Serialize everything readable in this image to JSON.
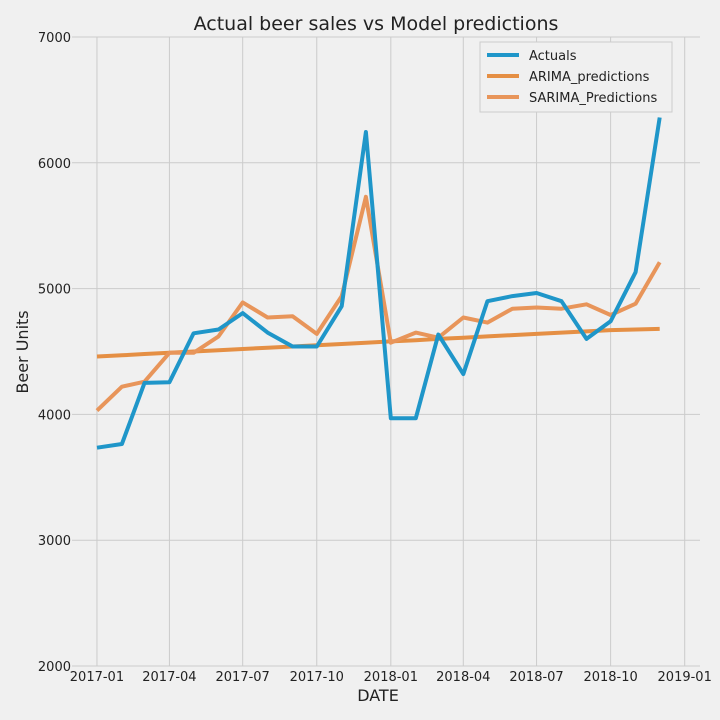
{
  "chart_data": {
    "type": "line",
    "title": "Actual beer sales vs Model predictions",
    "xlabel": "DATE",
    "ylabel": "Beer Units",
    "xlim": [
      "2016-12-01",
      "2019-01-20"
    ],
    "ylim": [
      2000,
      7000
    ],
    "grid": true,
    "legend_position": "top-right",
    "x_ticks": [
      "2017-01",
      "2017-04",
      "2017-07",
      "2017-10",
      "2018-01",
      "2018-04",
      "2018-07",
      "2018-10",
      "2019-01"
    ],
    "y_ticks": [
      2000,
      3000,
      4000,
      5000,
      6000,
      7000
    ],
    "x": [
      "2017-01",
      "2017-02",
      "2017-03",
      "2017-04",
      "2017-05",
      "2017-06",
      "2017-07",
      "2017-08",
      "2017-09",
      "2017-10",
      "2017-11",
      "2017-12",
      "2018-01",
      "2018-02",
      "2018-03",
      "2018-04",
      "2018-05",
      "2018-06",
      "2018-07",
      "2018-08",
      "2018-09",
      "2018-10",
      "2018-11",
      "2018-12"
    ],
    "series": [
      {
        "name": "Actuals",
        "color": "#1f96c9",
        "values": [
          3735,
          3765,
          4250,
          4255,
          4645,
          4675,
          4805,
          4650,
          4540,
          4540,
          4860,
          6245,
          3970,
          3970,
          4635,
          4320,
          4900,
          4940,
          4965,
          4900,
          4600,
          4740,
          5130,
          6360
        ]
      },
      {
        "name": "ARIMA_predictions",
        "color": "#e58f44",
        "values": [
          4460,
          4470,
          4480,
          4490,
          4500,
          4510,
          4520,
          4530,
          4540,
          4550,
          4560,
          4570,
          4580,
          4590,
          4600,
          4610,
          4620,
          4630,
          4640,
          4650,
          4660,
          4670,
          4675,
          4680
        ]
      },
      {
        "name": "SARIMA_Predictions",
        "color": "#e8955a",
        "values": [
          4030,
          4220,
          4260,
          4490,
          4490,
          4620,
          4890,
          4770,
          4780,
          4640,
          4940,
          5730,
          4570,
          4650,
          4610,
          4770,
          4730,
          4840,
          4850,
          4840,
          4875,
          4790,
          4880,
          5210
        ]
      }
    ]
  }
}
